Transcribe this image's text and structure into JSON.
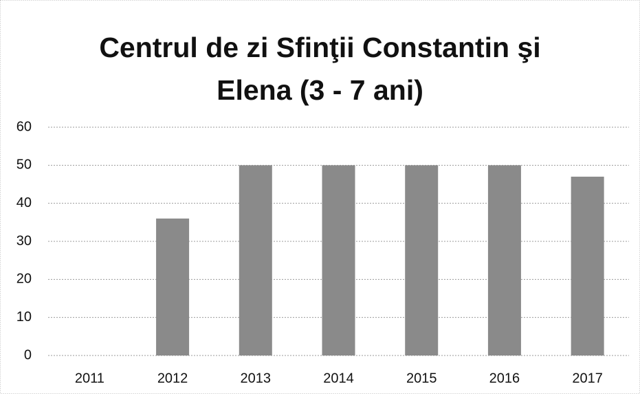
{
  "chart_data": {
    "type": "bar",
    "title": "Centrul de zi Sfinţii Constantin şi Elena  (3 - 7 ani)",
    "categories": [
      "2011",
      "2012",
      "2013",
      "2014",
      "2015",
      "2016",
      "2017"
    ],
    "values": [
      0,
      36,
      50,
      50,
      50,
      50,
      47
    ],
    "color": "#8a8a8a",
    "ylim": [
      0,
      60
    ],
    "yticks": [
      0,
      10,
      20,
      30,
      40,
      50,
      60
    ],
    "grid": true
  }
}
